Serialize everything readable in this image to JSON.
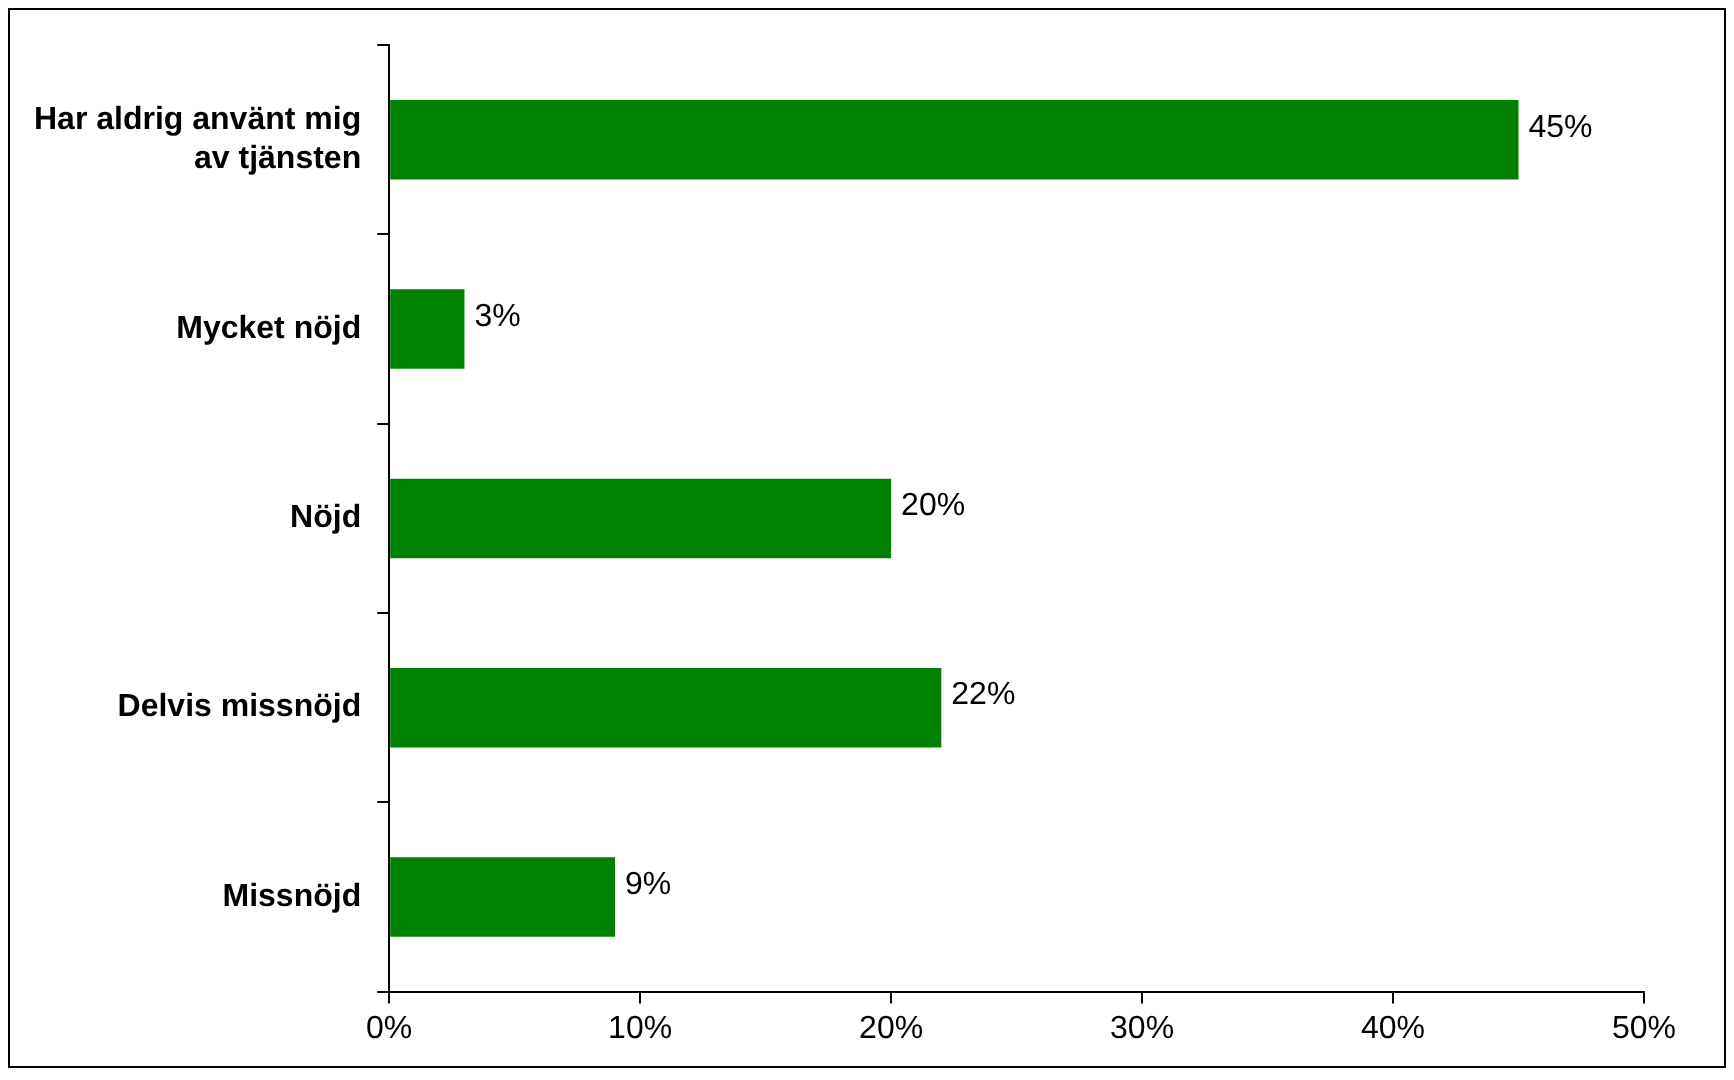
{
  "chart_data": {
    "type": "bar",
    "orientation": "horizontal",
    "categories": [
      "Har aldrig använt mig av tjänsten",
      "Mycket nöjd",
      "Nöjd",
      "Delvis missnöjd",
      "Missnöjd"
    ],
    "values": [
      45,
      3,
      20,
      22,
      9
    ],
    "color": "#008000",
    "xlim": [
      0,
      50
    ],
    "xticks": [
      {
        "value": 0,
        "label": "0%"
      },
      {
        "value": 10,
        "label": "10%"
      },
      {
        "value": 20,
        "label": "20%"
      },
      {
        "value": 30,
        "label": "30%"
      },
      {
        "value": 40,
        "label": "40%"
      },
      {
        "value": 50,
        "label": "50%"
      }
    ],
    "data_labels": true,
    "value_labels": [
      "45%",
      "3%",
      "20%",
      "22%",
      "9%"
    ],
    "grid": false,
    "legend": false
  }
}
